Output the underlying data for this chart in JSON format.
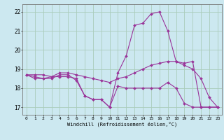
{
  "xlabel": "Windchill (Refroidissement éolien,°C)",
  "background_color": "#cce8f0",
  "grid_color": "#aaccbb",
  "line_color": "#993399",
  "x_ticks": [
    0,
    1,
    2,
    3,
    4,
    5,
    6,
    7,
    8,
    9,
    10,
    11,
    12,
    13,
    14,
    15,
    16,
    17,
    18,
    19,
    20,
    21,
    22,
    23
  ],
  "ylim": [
    16.6,
    22.4
  ],
  "y_ticks": [
    17,
    18,
    19,
    20,
    21,
    22
  ],
  "series": [
    [
      18.7,
      18.6,
      18.5,
      18.6,
      18.6,
      18.6,
      18.5,
      17.6,
      17.4,
      17.4,
      17.0,
      18.1,
      18.0,
      18.0,
      18.0,
      18.0,
      18.0,
      18.3,
      18.0,
      17.2,
      17.0,
      17.0,
      17.0,
      17.0
    ],
    [
      18.7,
      18.5,
      18.5,
      18.5,
      18.7,
      18.7,
      18.4,
      17.6,
      17.4,
      17.4,
      17.0,
      18.8,
      19.7,
      21.3,
      21.4,
      21.9,
      22.0,
      21.0,
      19.4,
      19.3,
      19.4,
      17.0,
      17.0,
      17.0
    ],
    [
      18.7,
      18.7,
      18.7,
      18.6,
      18.8,
      18.8,
      18.7,
      18.6,
      18.5,
      18.4,
      18.3,
      18.5,
      18.6,
      18.8,
      19.0,
      19.2,
      19.3,
      19.4,
      19.4,
      19.2,
      19.0,
      18.5,
      17.5,
      17.0
    ]
  ]
}
